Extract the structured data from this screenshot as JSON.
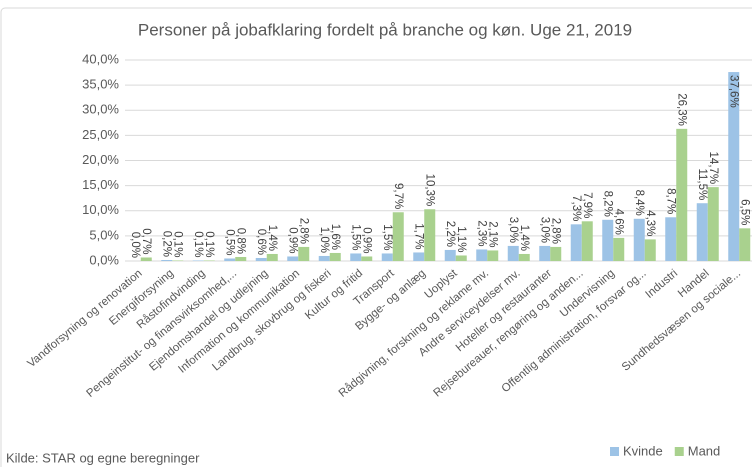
{
  "chart_data": {
    "type": "bar",
    "title": "Personer på jobafklaring fordelt på branche og køn. Uge 21, 2019",
    "source": "Kilde: STAR og egne beregninger",
    "categories": [
      "Vandforsyning og renovation",
      "Energiforsyning",
      "Råstofindvinding",
      "Pengeinstitut- og finansvirksomhed,...",
      "Ejendomshandel og udlejning",
      "Information og kommunikation",
      "Landbrug, skovbrug og fiskeri",
      "Kultur og fritid",
      "Transport",
      "Bygge- og anlæg",
      "Uoplyst",
      "Rådgivning, forskning og reklame mv.",
      "Andre serviceydelser mv.",
      "Hoteller og restauranter",
      "Rejsebureauer, rengøring og anden...",
      "Undervisning",
      "Offentlig administration, forsvar og...",
      "Industri",
      "Handel",
      "Sundhedsvæsen og sociale..."
    ],
    "series": [
      {
        "name": "Kvinde",
        "color": "#9dc3e6",
        "values": [
          0.0,
          0.2,
          0.1,
          0.5,
          0.6,
          0.9,
          1.0,
          1.5,
          1.5,
          1.7,
          2.2,
          2.3,
          3.0,
          3.0,
          7.3,
          8.2,
          8.4,
          8.7,
          11.5,
          37.6
        ],
        "value_labels": [
          "0,0%",
          "0,2%",
          "0,1%",
          "0,5%",
          "0,6%",
          "0,9%",
          "1,0%",
          "1,5%",
          "1,5%",
          "1,7%",
          "2,2%",
          "2,3%",
          "3,0%",
          "3,0%",
          "7,3%",
          "8,2%",
          "8,4%",
          "8,7%",
          "11,5%",
          "37,6%"
        ]
      },
      {
        "name": "Mand",
        "color": "#a9d18e",
        "values": [
          0.7,
          0.1,
          0.1,
          0.8,
          1.4,
          2.8,
          1.6,
          0.9,
          9.7,
          10.3,
          1.1,
          2.1,
          1.4,
          2.8,
          7.9,
          4.6,
          4.3,
          26.3,
          14.7,
          6.5
        ],
        "value_labels": [
          "0,7%",
          "0,1%",
          "0,1%",
          "0,8%",
          "1,4%",
          "2,8%",
          "1,6%",
          "0,9%",
          "9,7%",
          "10,3%",
          "1,1%",
          "2,1%",
          "1,4%",
          "2,8%",
          "7,9%",
          "4,6%",
          "4,3%",
          "26,3%",
          "14,7%",
          "6,5%"
        ]
      }
    ],
    "ylim": [
      0,
      40
    ],
    "yticks": [
      {
        "value": 0,
        "label": "0,0%"
      },
      {
        "value": 5,
        "label": "5,0%"
      },
      {
        "value": 10,
        "label": "10,0%"
      },
      {
        "value": 15,
        "label": "15,0%"
      },
      {
        "value": 20,
        "label": "20,0%"
      },
      {
        "value": 25,
        "label": "25,0%"
      },
      {
        "value": 30,
        "label": "30,0%"
      },
      {
        "value": 35,
        "label": "35,0%"
      },
      {
        "value": 40,
        "label": "40,0%"
      }
    ],
    "grid": true,
    "legend": "lower right"
  }
}
